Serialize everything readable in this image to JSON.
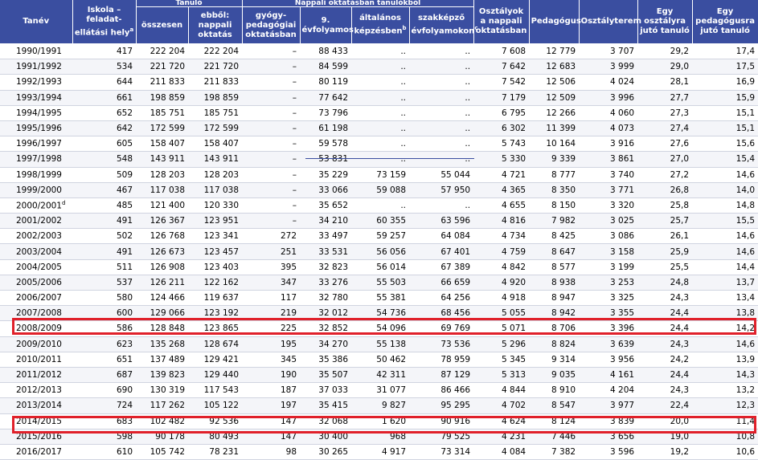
{
  "header": {
    "tanev": "Tanév",
    "iskola": "Iskola – feladat-ellátási hely",
    "iskola_sup": "a",
    "tanulo_group": "Tanuló",
    "osszesen": "összesen",
    "ebbol": "ebből: nappali oktatás",
    "nappali_group": "Nappali oktatásban tanulókból",
    "gyogy": "gyógy-pedagógiai oktatásban",
    "evfolyamos9": "9. évfolyamos",
    "altalanos": "általános képzésben",
    "altalanos_sup": "b",
    "szakkepzo": "szakképző évfolyamokon",
    "szakkepzo_sup": "c",
    "osztalyok": "Osztályok a nappali oktatásban",
    "pedagogus": "Pedagógus",
    "osztalyterem": "Osztályterem",
    "egy_osztaly": "Egy osztályra jutó tanuló",
    "egy_pedagogus": "Egy pedagógusra jutó tanuló"
  },
  "rows": [
    {
      "year": "1990/1991",
      "sup": "",
      "c": [
        "417",
        "222 204",
        "222 204",
        "–",
        "88 433",
        "..",
        "..",
        "7 608",
        "12 779",
        "3 707",
        "29,2",
        "17,4"
      ]
    },
    {
      "year": "1991/1992",
      "sup": "",
      "c": [
        "534",
        "221 720",
        "221 720",
        "–",
        "84 599",
        "..",
        "..",
        "7 642",
        "12 683",
        "3 999",
        "29,0",
        "17,5"
      ]
    },
    {
      "year": "1992/1993",
      "sup": "",
      "c": [
        "644",
        "211 833",
        "211 833",
        "–",
        "80 119",
        "..",
        "..",
        "7 542",
        "12 506",
        "4 024",
        "28,1",
        "16,9"
      ]
    },
    {
      "year": "1993/1994",
      "sup": "",
      "c": [
        "661",
        "198 859",
        "198 859",
        "–",
        "77 642",
        "..",
        "..",
        "7 179",
        "12 509",
        "3 996",
        "27,7",
        "15,9"
      ]
    },
    {
      "year": "1994/1995",
      "sup": "",
      "c": [
        "652",
        "185 751",
        "185 751",
        "–",
        "73 796",
        "..",
        "..",
        "6 795",
        "12 266",
        "4 060",
        "27,3",
        "15,1"
      ]
    },
    {
      "year": "1995/1996",
      "sup": "",
      "c": [
        "642",
        "172 599",
        "172 599",
        "–",
        "61 198",
        "..",
        "..",
        "6 302",
        "11 399",
        "4 073",
        "27,4",
        "15,1"
      ]
    },
    {
      "year": "1996/1997",
      "sup": "",
      "c": [
        "605",
        "158 407",
        "158 407",
        "–",
        "59 578",
        "..",
        "..",
        "5 743",
        "10 164",
        "3 916",
        "27,6",
        "15,6"
      ]
    },
    {
      "year": "1997/1998",
      "sup": "",
      "c": [
        "548",
        "143 911",
        "143 911",
        "–",
        "53 831",
        "..",
        "..",
        "5 330",
        "9 339",
        "3 861",
        "27,0",
        "15,4"
      ]
    },
    {
      "year": "1998/1999",
      "sup": "",
      "c": [
        "509",
        "128 203",
        "128 203",
        "–",
        "35 229",
        "73 159",
        "55 044",
        "4 721",
        "8 777",
        "3 740",
        "27,2",
        "14,6"
      ]
    },
    {
      "year": "1999/2000",
      "sup": "",
      "c": [
        "467",
        "117 038",
        "117 038",
        "–",
        "33 066",
        "59 088",
        "57 950",
        "4 365",
        "8 350",
        "3 771",
        "26,8",
        "14,0"
      ]
    },
    {
      "year": "2000/2001",
      "sup": "d",
      "c": [
        "485",
        "121 400",
        "120 330",
        "–",
        "35 652",
        "..",
        "..",
        "4 655",
        "8 150",
        "3 320",
        "25,8",
        "14,8"
      ]
    },
    {
      "year": "2001/2002",
      "sup": "",
      "c": [
        "491",
        "126 367",
        "123 951",
        "–",
        "34 210",
        "60 355",
        "63 596",
        "4 816",
        "7 982",
        "3 025",
        "25,7",
        "15,5"
      ]
    },
    {
      "year": "2002/2003",
      "sup": "",
      "c": [
        "502",
        "126 768",
        "123 341",
        "272",
        "33 497",
        "59 257",
        "64 084",
        "4 734",
        "8 425",
        "3 086",
        "26,1",
        "14,6"
      ]
    },
    {
      "year": "2003/2004",
      "sup": "",
      "c": [
        "491",
        "126 673",
        "123 457",
        "251",
        "33 531",
        "56 056",
        "67 401",
        "4 759",
        "8 647",
        "3 158",
        "25,9",
        "14,6"
      ]
    },
    {
      "year": "2004/2005",
      "sup": "",
      "c": [
        "511",
        "126 908",
        "123 403",
        "395",
        "32 823",
        "56 014",
        "67 389",
        "4 842",
        "8 577",
        "3 199",
        "25,5",
        "14,4"
      ]
    },
    {
      "year": "2005/2006",
      "sup": "",
      "c": [
        "537",
        "126 211",
        "122 162",
        "347",
        "33 276",
        "55 503",
        "66 659",
        "4 920",
        "8 938",
        "3 253",
        "24,8",
        "13,7"
      ]
    },
    {
      "year": "2006/2007",
      "sup": "",
      "c": [
        "580",
        "124 466",
        "119 637",
        "117",
        "32 780",
        "55 381",
        "64 256",
        "4 918",
        "8 947",
        "3 325",
        "24,3",
        "13,4"
      ]
    },
    {
      "year": "2007/2008",
      "sup": "",
      "c": [
        "600",
        "129 066",
        "123 192",
        "219",
        "32 012",
        "54 736",
        "68 456",
        "5 055",
        "8 942",
        "3 355",
        "24,4",
        "13,8"
      ]
    },
    {
      "year": "2008/2009",
      "sup": "",
      "c": [
        "586",
        "128 848",
        "123 865",
        "225",
        "32 852",
        "54 096",
        "69 769",
        "5 071",
        "8 706",
        "3 396",
        "24,4",
        "14,2"
      ]
    },
    {
      "year": "2009/2010",
      "sup": "",
      "c": [
        "623",
        "135 268",
        "128 674",
        "195",
        "34 270",
        "55 138",
        "73 536",
        "5 296",
        "8 824",
        "3 639",
        "24,3",
        "14,6"
      ]
    },
    {
      "year": "2010/2011",
      "sup": "",
      "c": [
        "651",
        "137 489",
        "129 421",
        "345",
        "35 386",
        "50 462",
        "78 959",
        "5 345",
        "9 314",
        "3 956",
        "24,2",
        "13,9"
      ]
    },
    {
      "year": "2011/2012",
      "sup": "",
      "c": [
        "687",
        "139 823",
        "129 440",
        "190",
        "35 507",
        "42 311",
        "87 129",
        "5 313",
        "9 035",
        "4 161",
        "24,4",
        "14,3"
      ]
    },
    {
      "year": "2012/2013",
      "sup": "",
      "c": [
        "690",
        "130 319",
        "117 543",
        "187",
        "37 033",
        "31 077",
        "86 466",
        "4 844",
        "8 910",
        "4 204",
        "24,3",
        "13,2"
      ]
    },
    {
      "year": "2013/2014",
      "sup": "",
      "c": [
        "724",
        "117 262",
        "105 122",
        "197",
        "35 415",
        "9 827",
        "95 295",
        "4 702",
        "8 547",
        "3 977",
        "22,4",
        "12,3"
      ]
    },
    {
      "year": "2014/2015",
      "sup": "",
      "c": [
        "683",
        "102 482",
        "92 536",
        "147",
        "32 068",
        "1 620",
        "90 916",
        "4 624",
        "8 124",
        "3 839",
        "20,0",
        "11,4"
      ]
    },
    {
      "year": "2015/2016",
      "sup": "",
      "c": [
        "598",
        "90 178",
        "80 493",
        "147",
        "30 400",
        "968",
        "79 525",
        "4 231",
        "7 446",
        "3 656",
        "19,0",
        "10,8"
      ]
    },
    {
      "year": "2016/2017",
      "sup": "",
      "c": [
        "610",
        "105 742",
        "78 231",
        "98",
        "30 265",
        "4 917",
        "73 314",
        "4 084",
        "7 382",
        "3 596",
        "19,2",
        "10,6"
      ]
    }
  ]
}
